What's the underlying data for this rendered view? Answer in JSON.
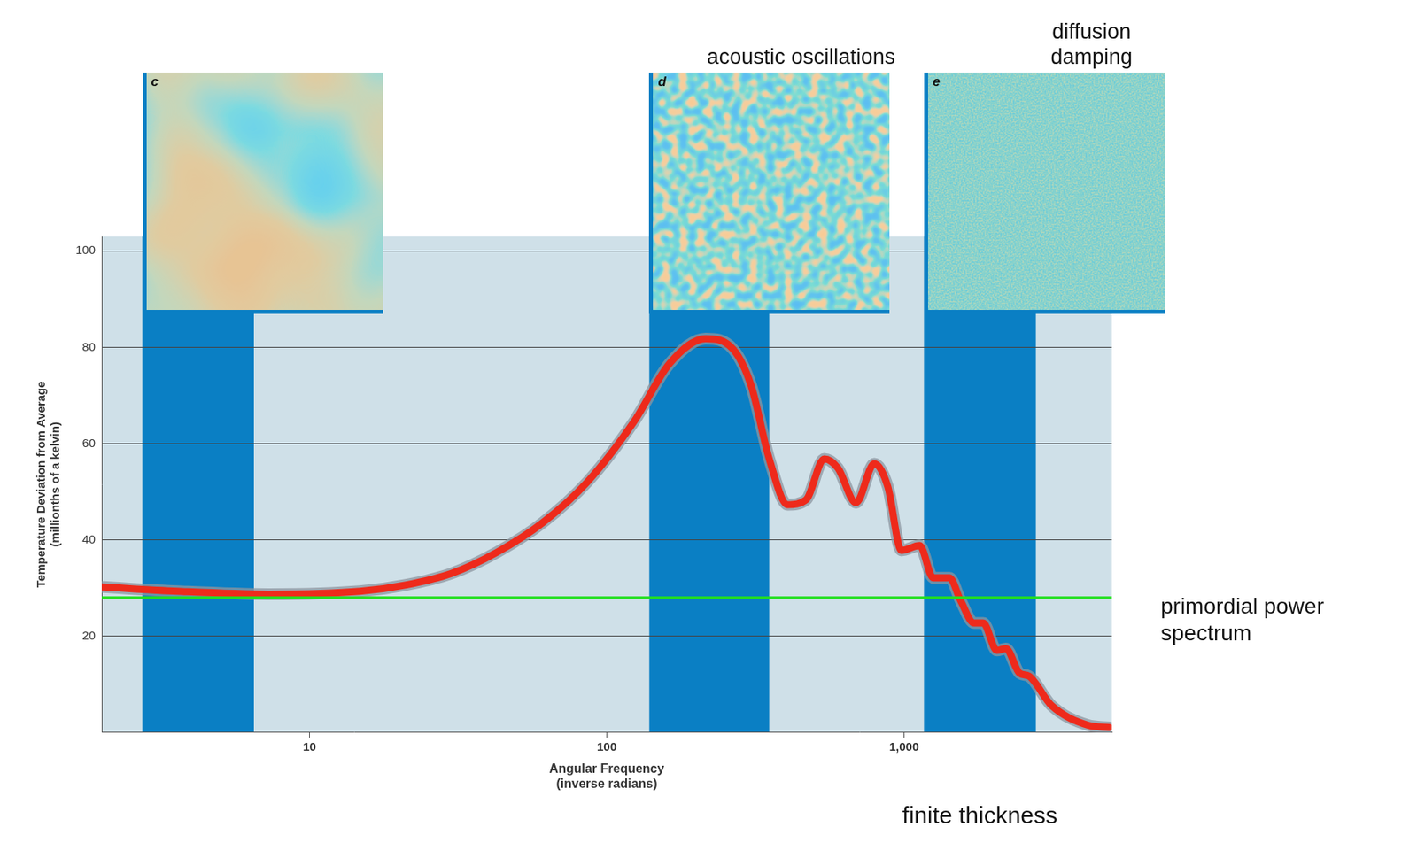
{
  "chart_data": {
    "type": "line",
    "x_label": [
      "Angular Frequency",
      "(inverse radians)"
    ],
    "y_label": [
      "Temperature Deviation from Average",
      "(millionths of a kelvin)"
    ],
    "log": "x",
    "grid": true,
    "xlim": [
      2,
      5000
    ],
    "xticks": [
      10,
      100,
      {
        "value": 1000,
        "label": "1,000"
      }
    ],
    "ylim": [
      0,
      103
    ],
    "yticks": [
      20,
      40,
      60,
      80,
      100
    ],
    "color": "#ee2a1b",
    "x": [
      2,
      3.6,
      7.3,
      14.8,
      21,
      30,
      42.7,
      60.7,
      86,
      123,
      163,
      215,
      266,
      306,
      352,
      406,
      468,
      539,
      599,
      689,
      794,
      882,
      980,
      1128,
      1254,
      1422,
      1549,
      1721,
      1846,
      2052,
      2202,
      2445,
      2625,
      3129,
      4150,
      4900
    ],
    "values": [
      30.2,
      29.3,
      28.7,
      29.3,
      30.6,
      33,
      37.4,
      43.5,
      52,
      64.4,
      76.7,
      81.8,
      79.6,
      72,
      56.8,
      47.3,
      48.3,
      56.8,
      54.9,
      47.7,
      55.8,
      51,
      37.8,
      38.8,
      32.1,
      32.1,
      27.4,
      22.7,
      22.7,
      17,
      17.4,
      12.3,
      11.7,
      5.6,
      1.5,
      1
    ],
    "reference_line": {
      "label": "primordial power spectrum",
      "value": 28,
      "color": "#22e01e"
    },
    "bands": [
      {
        "letter": "c",
        "xmin": 2.74,
        "xmax": 6.5,
        "color": "#0a7fc4"
      },
      {
        "letter": "d",
        "xmin": 139,
        "xmax": 352,
        "color": "#0a7fc4",
        "caption": "acoustic oscillations"
      },
      {
        "letter": "e",
        "xmin": 1167,
        "xmax": 2775,
        "color": "#0a7fc4",
        "caption": "diffusion damping",
        "note": "finite thickness"
      }
    ]
  }
}
